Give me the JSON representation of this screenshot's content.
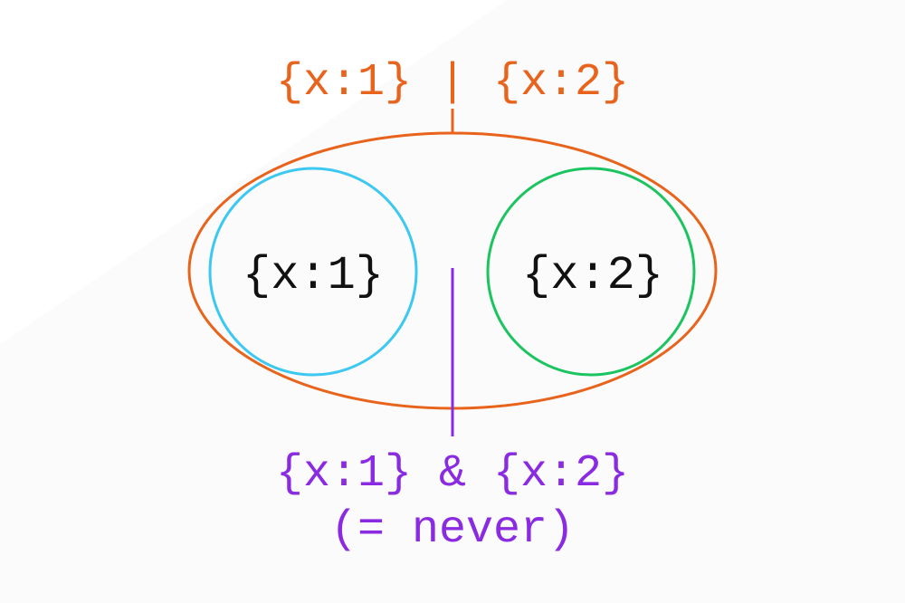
{
  "union_label": "{x:1} | {x:2}",
  "left_set_label": "{x:1}",
  "right_set_label": "{x:2}",
  "intersection_label": "{x:1} & {x:2}",
  "intersection_note": "(= never)",
  "colors": {
    "union": "#e8631c",
    "left_set": "#3cc8f0",
    "right_set": "#1cc460",
    "intersection": "#8a2be2",
    "set_text": "#111111",
    "background": "#ffffff"
  }
}
